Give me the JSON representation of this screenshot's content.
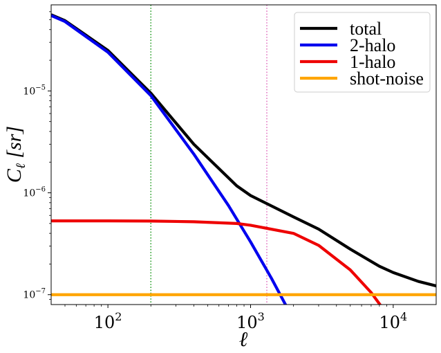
{
  "chart_data": {
    "type": "line",
    "xscale": "log",
    "yscale": "log",
    "xlim": [
      40,
      20000
    ],
    "ylim": [
      8e-08,
      7e-05
    ],
    "xlabel": "ℓ",
    "ylabel": "C",
    "ylabel_sub": "ℓ",
    "ylabel_unit": "[sr]",
    "grid": false,
    "legend_position": "top-right",
    "x_ticks": [
      {
        "value": 100,
        "base": "10",
        "exp": "2"
      },
      {
        "value": 1000,
        "base": "10",
        "exp": "3"
      },
      {
        "value": 10000,
        "base": "10",
        "exp": "4"
      }
    ],
    "y_ticks": [
      {
        "value": 1e-07,
        "base": "10",
        "exp": "−7"
      },
      {
        "value": 1e-06,
        "base": "10",
        "exp": "−6"
      },
      {
        "value": 1e-05,
        "base": "10",
        "exp": "−5"
      }
    ],
    "vlines": [
      {
        "x": 200,
        "color": "#2ca02c",
        "style": "dotted"
      },
      {
        "x": 1300,
        "color": "#e377c2",
        "style": "dotted"
      }
    ],
    "series": [
      {
        "name": "total",
        "color": "#000000",
        "x": [
          40,
          50,
          100,
          200,
          400,
          800,
          1000,
          2000,
          3000,
          5000,
          8000,
          10000,
          15000,
          20000
        ],
        "y": [
          5.6e-05,
          4.9e-05,
          2.5e-05,
          9.5e-06,
          3e-06,
          1.17e-06,
          9.4e-07,
          5.8e-07,
          4.4e-07,
          2.8e-07,
          1.9e-07,
          1.65e-07,
          1.35e-07,
          1.22e-07
        ]
      },
      {
        "name": "2-halo",
        "color": "#0000ee",
        "x": [
          40,
          50,
          100,
          200,
          400,
          700,
          1000,
          1400,
          1800
        ],
        "y": [
          5.5e-05,
          4.8e-05,
          2.4e-05,
          9e-06,
          2.4e-06,
          7.5e-07,
          3.3e-07,
          1.45e-07,
          7.5e-08
        ]
      },
      {
        "name": "1-halo",
        "color": "#ee0000",
        "x": [
          40,
          100,
          200,
          400,
          800,
          1000,
          2000,
          3000,
          5000,
          7000,
          9000
        ],
        "y": [
          5.3e-07,
          5.3e-07,
          5.28e-07,
          5.2e-07,
          5e-07,
          4.8e-07,
          4e-07,
          3.05e-07,
          1.75e-07,
          1.05e-07,
          6.5e-08
        ]
      },
      {
        "name": "shot-noise",
        "color": "#ffa500",
        "x": [
          40,
          20000
        ],
        "y": [
          1e-07,
          1e-07
        ]
      }
    ]
  }
}
